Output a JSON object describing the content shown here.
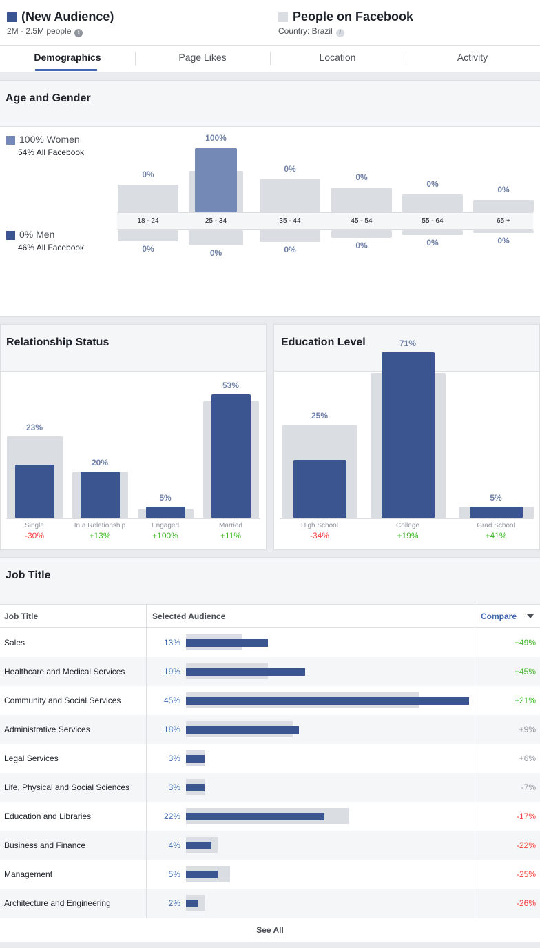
{
  "header": {
    "audience": {
      "name": "(New Audience)",
      "size": "2M - 2.5M people",
      "color": "#3b5590",
      "info_icon": "info-icon"
    },
    "baseline": {
      "name": "People on Facebook",
      "country": "Country: Brazil",
      "color": "#dadde1",
      "info_icon": "info-icon"
    }
  },
  "tabs": [
    {
      "label": "Demographics",
      "active": true
    },
    {
      "label": "Page Likes",
      "active": false
    },
    {
      "label": "Location",
      "active": false
    },
    {
      "label": "Activity",
      "active": false
    }
  ],
  "age_gender": {
    "title": "Age and Gender",
    "women": {
      "label": "100% Women",
      "sub": "54% All Facebook",
      "color": "#7589b6"
    },
    "men": {
      "label": "0% Men",
      "sub": "46% All Facebook",
      "color": "#3b5590"
    },
    "chart_data": {
      "type": "bar",
      "categories": [
        "18 - 24",
        "25 - 34",
        "35 - 44",
        "45 - 54",
        "55 - 64",
        "65 +"
      ],
      "series": [
        {
          "name": "Women",
          "values": [
            0,
            100,
            0,
            0,
            0,
            0
          ],
          "labels": [
            "0%",
            "100%",
            "0%",
            "0%",
            "0%",
            "0%"
          ]
        },
        {
          "name": "Men",
          "values": [
            0,
            0,
            0,
            0,
            0,
            0
          ],
          "labels": [
            "0%",
            "0%",
            "0%",
            "0%",
            "0%",
            "0%"
          ]
        }
      ],
      "baseline_women": [
        16,
        26,
        20,
        14,
        9,
        5
      ],
      "baseline_men": [
        16,
        22,
        17,
        11,
        7,
        4
      ]
    }
  },
  "relationship": {
    "title": "Relationship Status",
    "chart_data": {
      "type": "bar",
      "categories": [
        "Single",
        "In a Relationship",
        "Engaged",
        "Married"
      ],
      "values": [
        23,
        20,
        5,
        53
      ],
      "labels": [
        "23%",
        "20%",
        "5%",
        "53%"
      ],
      "baseline": [
        33,
        18,
        2,
        48
      ],
      "compare": [
        "-30%",
        "+13%",
        "+100%",
        "+11%"
      ]
    }
  },
  "education": {
    "title": "Education Level",
    "chart_data": {
      "type": "bar",
      "categories": [
        "High School",
        "College",
        "Grad School"
      ],
      "values": [
        25,
        71,
        5
      ],
      "labels": [
        "25%",
        "71%",
        "5%"
      ],
      "baseline": [
        38,
        60,
        3
      ],
      "compare": [
        "-34%",
        "+19%",
        "+41%"
      ]
    }
  },
  "job": {
    "title": "Job Title",
    "col_job": "Job Title",
    "col_selected": "Selected Audience",
    "col_compare": "Compare",
    "see_all": "See All",
    "chart_data": {
      "type": "bar",
      "categories": [
        "Sales",
        "Healthcare and Medical Services",
        "Community and Social Services",
        "Administrative Services",
        "Legal Services",
        "Life, Physical and Social Sciences",
        "Education and Libraries",
        "Business and Finance",
        "Management",
        "Architecture and Engineering"
      ],
      "values": [
        13,
        19,
        45,
        18,
        3,
        3,
        22,
        4,
        5,
        2
      ],
      "labels": [
        "13%",
        "19%",
        "45%",
        "18%",
        "3%",
        "3%",
        "22%",
        "4%",
        "5%",
        "2%"
      ],
      "baseline": [
        9,
        13,
        37,
        17,
        3,
        3,
        26,
        5,
        7,
        3
      ],
      "compare": [
        "+49%",
        "+45%",
        "+21%",
        "+9%",
        "+6%",
        "-7%",
        "-17%",
        "-22%",
        "-25%",
        "-26%"
      ]
    }
  }
}
